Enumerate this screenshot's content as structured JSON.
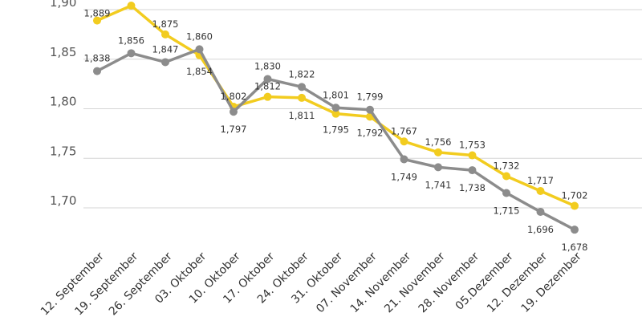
{
  "chart_data": {
    "type": "line",
    "title": "",
    "xlabel": "",
    "ylabel": "",
    "ylim": [
      1.675,
      1.905
    ],
    "yticks": [
      1.7,
      1.75,
      1.8,
      1.85,
      1.9
    ],
    "ytick_labels": [
      "1,70",
      "1,75",
      "1,80",
      "1,85",
      "1,90"
    ],
    "grid": true,
    "categories": [
      "12. September",
      "19. September",
      "26. September",
      "03. Oktober",
      "10. Oktober",
      "17. Oktober",
      "24. Oktober",
      "31. Oktober",
      "07. November",
      "14. November",
      "21. November",
      "28. November",
      "05.Dezember",
      "12. Dezember",
      "19. Dezember"
    ],
    "series": [
      {
        "name": "yellow",
        "color": "#f2cc1f",
        "values": [
          1.889,
          1.904,
          1.875,
          1.854,
          1.802,
          1.812,
          1.811,
          1.795,
          1.792,
          1.767,
          1.756,
          1.753,
          1.732,
          1.717,
          1.702
        ],
        "labels": [
          "1,889",
          null,
          "1,875",
          "1,854",
          "1,802",
          "1,812",
          "1,811",
          "1,795",
          "1,792",
          "1,767",
          "1,756",
          "1,753",
          "1,732",
          "1,717",
          "1,702"
        ]
      },
      {
        "name": "gray",
        "color": "#8c8c8c",
        "values": [
          1.838,
          1.856,
          1.847,
          1.86,
          1.797,
          1.83,
          1.822,
          1.801,
          1.799,
          1.749,
          1.741,
          1.738,
          1.715,
          1.696,
          1.678
        ],
        "labels": [
          "1,838",
          "1,856",
          "1,847",
          "1,860",
          "1,797",
          "1,830",
          "1,822",
          "1,801",
          "1,799",
          "1,749",
          "1,741",
          "1,738",
          "1,715",
          "1,696",
          "1,678"
        ]
      }
    ]
  }
}
